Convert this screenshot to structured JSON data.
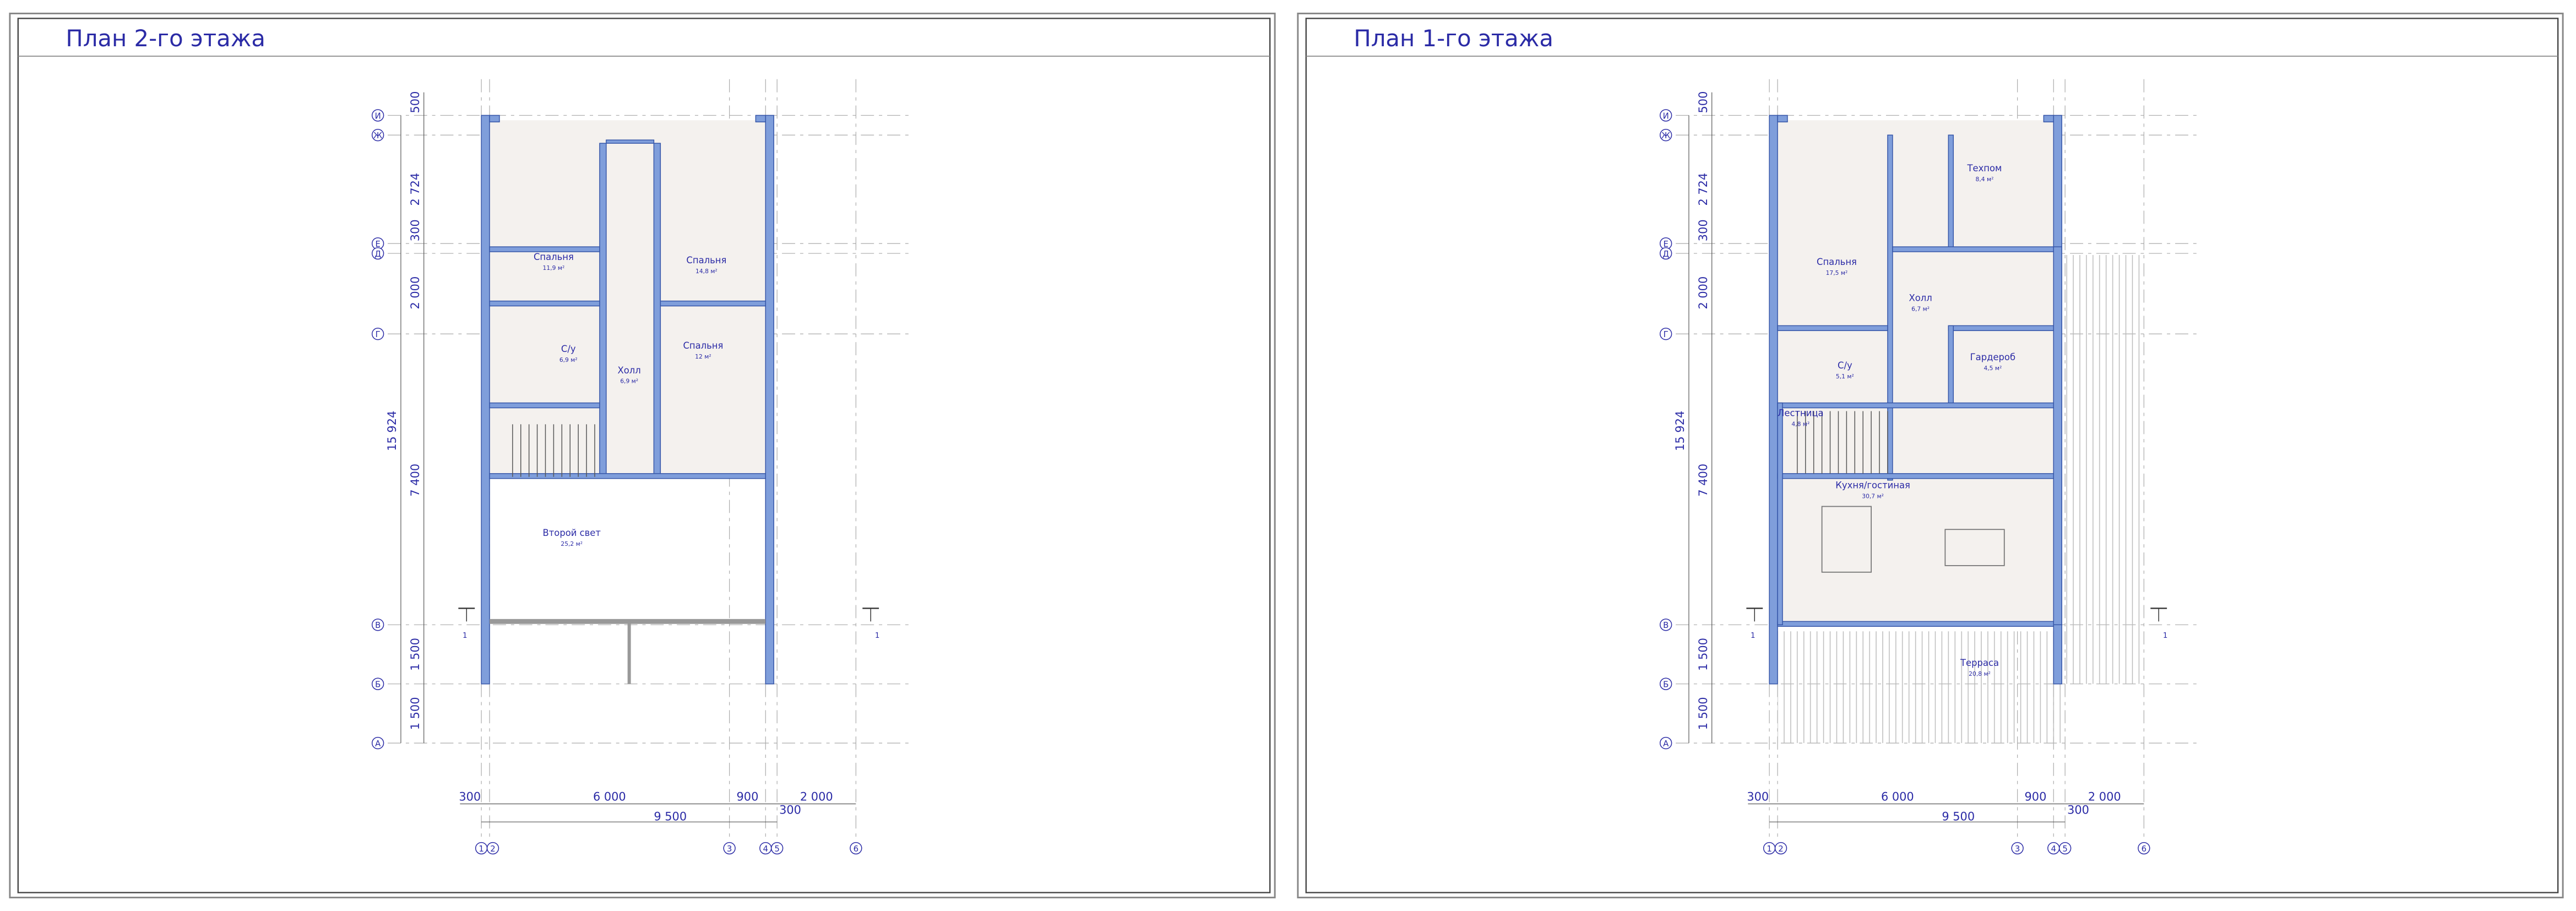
{
  "sheets": [
    {
      "title": "План 2-го этажа",
      "rooms": [
        {
          "name": "Спальня",
          "area": "11,9 м²"
        },
        {
          "name": "Спальня",
          "area": "14,8 м²"
        },
        {
          "name": "С/у",
          "area": "6,9 м²"
        },
        {
          "name": "Холл",
          "area": "6,9 м²"
        },
        {
          "name": "Спальня",
          "area": "12 м²"
        },
        {
          "name": "Второй свет",
          "area": "25,2 м²"
        }
      ],
      "dims_vertical": [
        "500",
        "2 724",
        "300",
        "2 000",
        "7 400",
        "1 500",
        "1 500"
      ],
      "dim_total_vertical": "15 924",
      "dims_horizontal": [
        "300",
        "6 000",
        "900",
        "2 000",
        "300"
      ],
      "dim_total_horizontal": "9 500",
      "axes_letters": [
        "И",
        "Ж",
        "Е",
        "Д",
        "Г",
        "В",
        "Б",
        "А"
      ],
      "axes_numbers": [
        "1",
        "2",
        "3",
        "4",
        "5",
        "6"
      ],
      "section_marks": [
        "1",
        "1"
      ]
    },
    {
      "title": "План 1-го этажа",
      "rooms": [
        {
          "name": "Спальня",
          "area": "17,5 м²"
        },
        {
          "name": "Техпом",
          "area": "8,4 м²"
        },
        {
          "name": "Холл",
          "area": "6,7 м²"
        },
        {
          "name": "С/у",
          "area": "5,1 м²"
        },
        {
          "name": "Гардероб",
          "area": "4,5 м²"
        },
        {
          "name": "Лестница",
          "area": "4,8 м²"
        },
        {
          "name": "Кухня/гостиная",
          "area": "30,7 м²"
        },
        {
          "name": "Терраса",
          "area": "20,8 м²"
        }
      ],
      "dims_vertical": [
        "500",
        "2 724",
        "300",
        "2 000",
        "7 400",
        "1 500",
        "1 500"
      ],
      "dim_total_vertical": "15 924",
      "dims_horizontal": [
        "300",
        "6 000",
        "900",
        "2 000",
        "300"
      ],
      "dim_total_horizontal": "9 500",
      "axes_letters": [
        "И",
        "Ж",
        "Е",
        "Д",
        "Г",
        "В",
        "Б",
        "А"
      ],
      "axes_numbers": [
        "1",
        "2",
        "3",
        "4",
        "5",
        "6"
      ],
      "section_marks": [
        "1",
        "1"
      ]
    }
  ]
}
